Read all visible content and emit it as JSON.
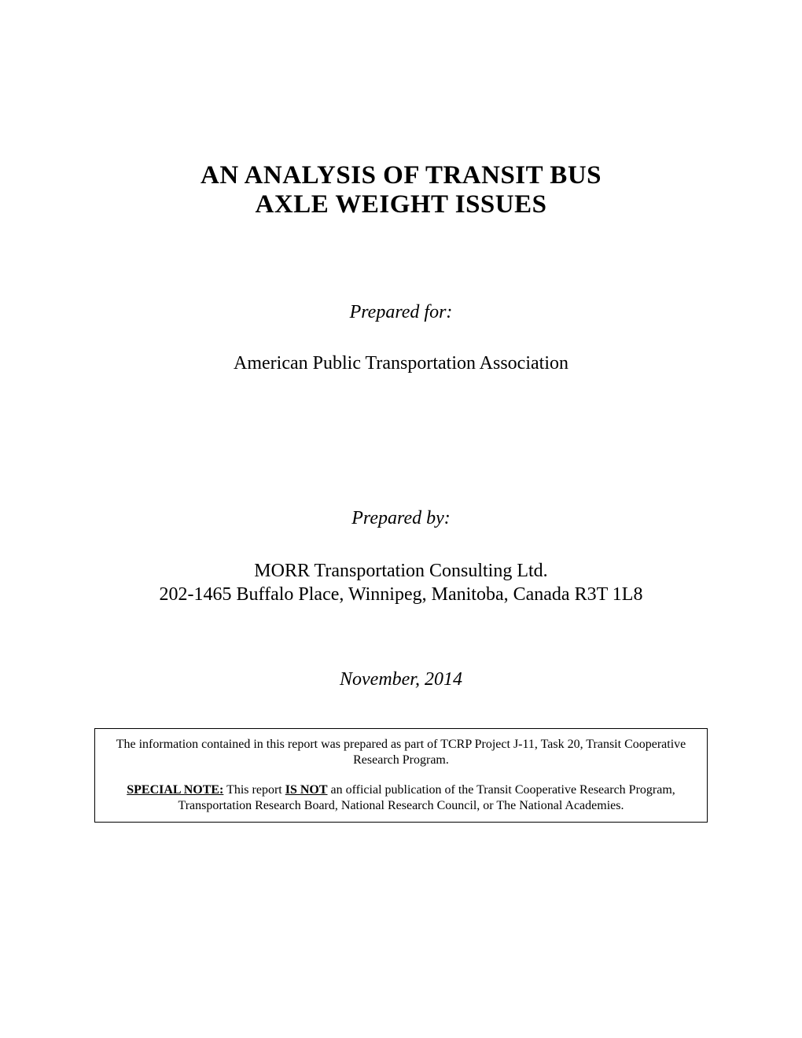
{
  "page": {
    "background_color": "#ffffff",
    "text_color": "#000000",
    "font_family": "Times New Roman"
  },
  "title": {
    "line1": "AN ANALYSIS OF TRANSIT BUS",
    "line2": "AXLE WEIGHT ISSUES",
    "fontsize": 33,
    "fontweight": "bold"
  },
  "prepared_for": {
    "label": "Prepared for:",
    "body": "American Public Transportation Association",
    "label_fontsize": 24,
    "body_fontsize": 24
  },
  "prepared_by": {
    "label": "Prepared by:",
    "line1": "MORR Transportation Consulting Ltd.",
    "line2": "202-1465 Buffalo Place, Winnipeg, Manitoba, Canada R3T 1L8",
    "label_fontsize": 24,
    "body_fontsize": 24
  },
  "date": {
    "text": "November, 2014",
    "fontsize": 24
  },
  "notice": {
    "border_color": "#000000",
    "fontsize": 16,
    "para1": "The information contained in this report was prepared as part of TCRP Project J-11, Task 20, Transit Cooperative Research Program.",
    "para2_prefix": "SPECIAL NOTE:",
    "para2_mid1": "  This report ",
    "para2_isnot": "IS NOT",
    "para2_tail": " an official publication of the Transit Cooperative Research Program, Transportation Research Board, National Research Council, or The National Academies."
  }
}
